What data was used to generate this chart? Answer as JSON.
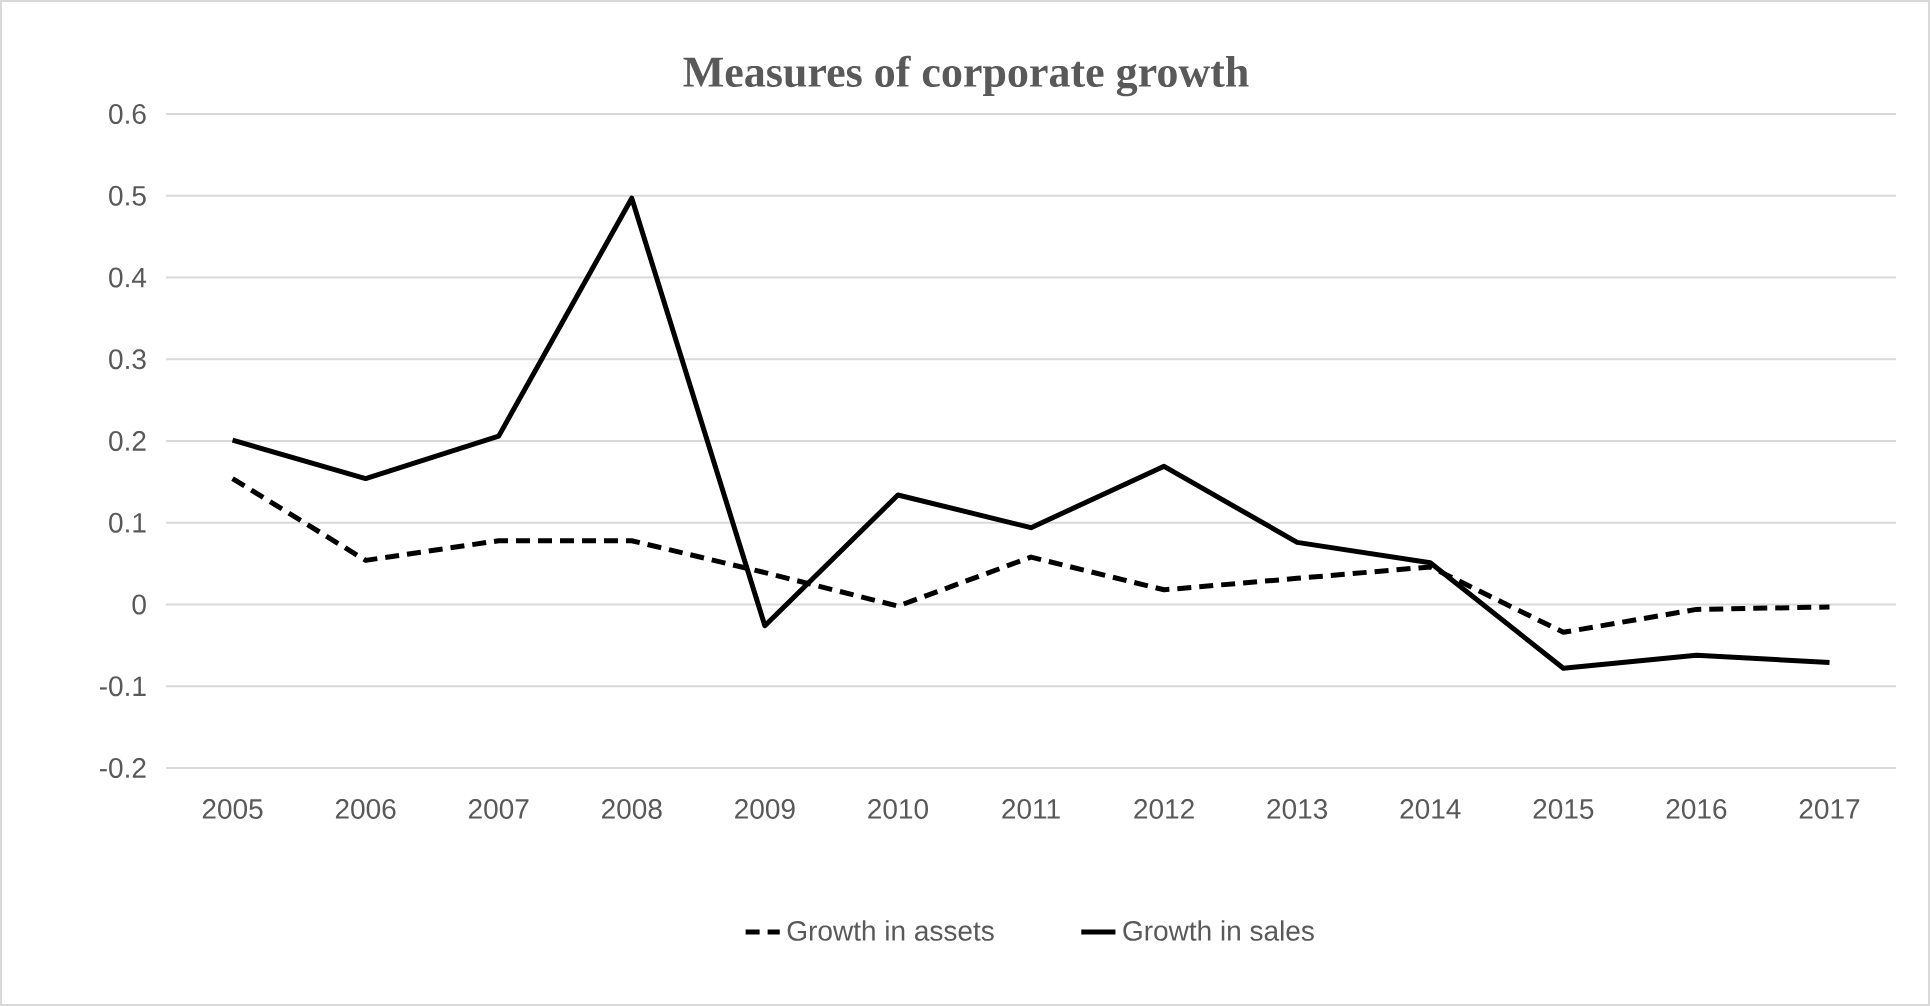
{
  "chart_data": {
    "type": "line",
    "title": "Measures of corporate growth",
    "categories": [
      "2005",
      "2006",
      "2007",
      "2008",
      "2009",
      "2010",
      "2011",
      "2012",
      "2013",
      "2014",
      "2015",
      "2016",
      "2017"
    ],
    "series": [
      {
        "name": "Growth in assets",
        "color": "#000000",
        "line_style": "dashed",
        "values": [
          0.154,
          0.054,
          0.078,
          0.078,
          0.039,
          -0.002,
          0.058,
          0.018,
          0.032,
          0.046,
          -0.034,
          -0.006,
          -0.003
        ]
      },
      {
        "name": "Growth in sales",
        "color": "#000000",
        "line_style": "solid",
        "values": [
          0.201,
          0.154,
          0.206,
          0.497,
          -0.026,
          0.134,
          0.094,
          0.169,
          0.076,
          0.051,
          -0.078,
          -0.062,
          -0.071
        ]
      }
    ],
    "ylim": [
      -0.2,
      0.6
    ],
    "yticks": [
      -0.2,
      -0.1,
      0,
      0.1,
      0.2,
      0.3,
      0.4,
      0.5,
      0.6
    ],
    "grid": "y",
    "legend": "bottom",
    "marker": "none"
  }
}
